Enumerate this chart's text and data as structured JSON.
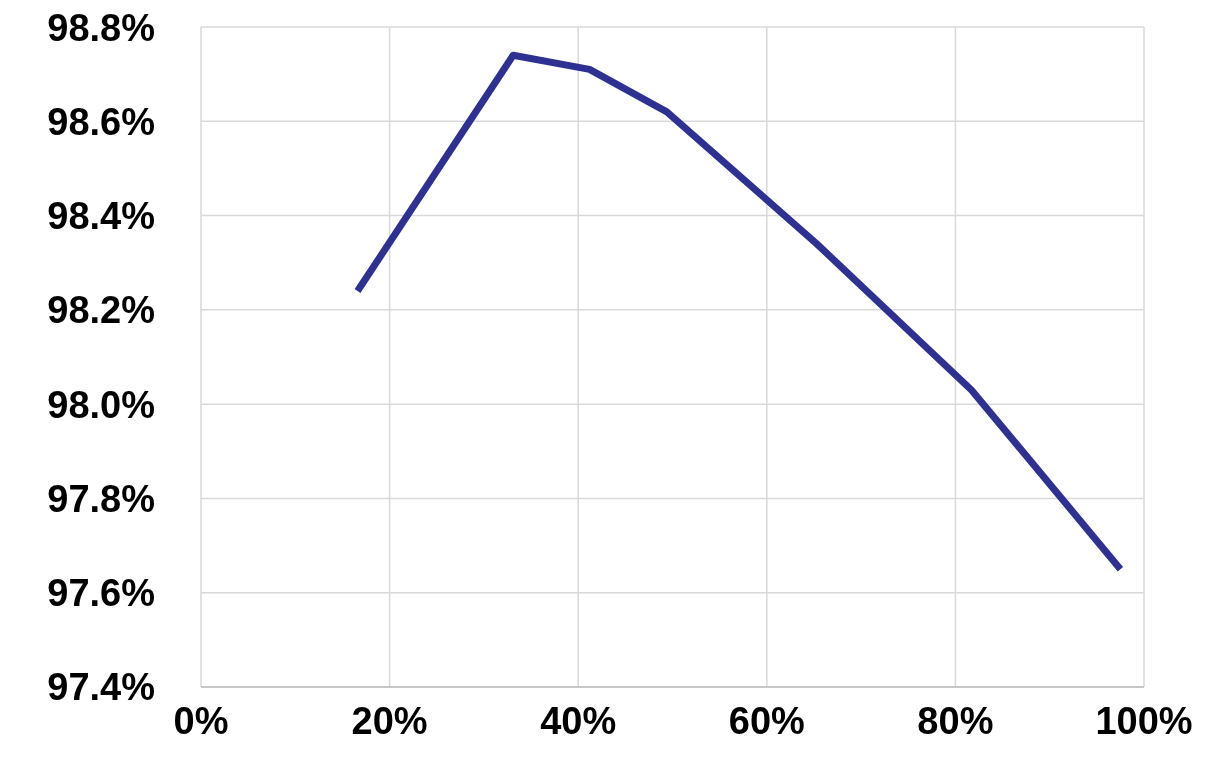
{
  "chart_data": {
    "type": "line",
    "x": [
      16.6,
      33.1,
      41.2,
      49.4,
      65.3,
      81.7,
      97.5
    ],
    "series": [
      {
        "color": "#2e3192",
        "values": [
          98.24,
          98.74,
          98.71,
          98.62,
          98.34,
          98.03,
          97.65
        ]
      }
    ],
    "xlim": [
      0,
      100
    ],
    "xticks": [
      {
        "value": 0,
        "label": "0%"
      },
      {
        "value": 20,
        "label": "20%"
      },
      {
        "value": 40,
        "label": "40%"
      },
      {
        "value": 60,
        "label": "60%"
      },
      {
        "value": 80,
        "label": "80%"
      },
      {
        "value": 100,
        "label": "100%"
      }
    ],
    "ylim": [
      97.4,
      98.8
    ],
    "yticks": [
      {
        "value": 97.4,
        "label": "97.4%"
      },
      {
        "value": 97.6,
        "label": "97.6%"
      },
      {
        "value": 97.8,
        "label": "97.8%"
      },
      {
        "value": 98.0,
        "label": "98.0%"
      },
      {
        "value": 98.2,
        "label": "98.2%"
      },
      {
        "value": 98.4,
        "label": "98.4%"
      },
      {
        "value": 98.6,
        "label": "98.6%"
      },
      {
        "value": 98.8,
        "label": "98.8%"
      }
    ],
    "grid": true,
    "marker": "none",
    "line_style": "solid"
  }
}
